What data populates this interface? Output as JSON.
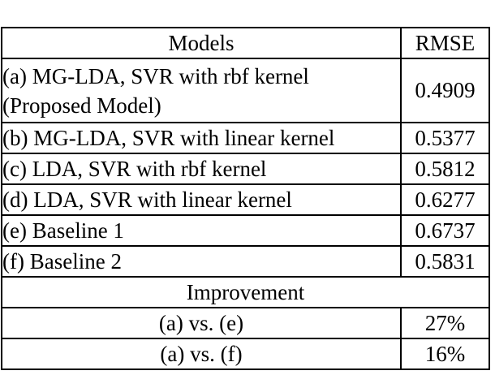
{
  "colors": {
    "background": "#ffffff",
    "border": "#000000",
    "text": "#000000"
  },
  "table": {
    "header": {
      "models": "Models",
      "rmse": "RMSE"
    },
    "rows": [
      {
        "model_line1": "(a) MG-LDA, SVR with rbf kernel",
        "model_line2": "(Proposed Model)",
        "rmse": "0.4909"
      },
      {
        "model": "(b) MG-LDA, SVR with linear kernel",
        "rmse": "0.5377"
      },
      {
        "model": "(c) LDA, SVR with rbf kernel",
        "rmse": "0.5812"
      },
      {
        "model": "(d) LDA, SVR with linear kernel",
        "rmse": "0.6277"
      },
      {
        "model": "(e) Baseline 1",
        "rmse": "0.6737"
      },
      {
        "model": "(f) Baseline 2",
        "rmse": "0.5831"
      }
    ],
    "section_header": "Improvement",
    "improvements": [
      {
        "comparison": "(a) vs. (e)",
        "value": "27%"
      },
      {
        "comparison": "(a) vs. (f)",
        "value": "16%"
      }
    ]
  },
  "chart_data": {
    "type": "table",
    "columns": [
      "Models",
      "RMSE"
    ],
    "rows": [
      [
        "(a) MG-LDA, SVR with rbf kernel (Proposed Model)",
        0.4909
      ],
      [
        "(b) MG-LDA, SVR with linear kernel",
        0.5377
      ],
      [
        "(c) LDA, SVR with rbf kernel",
        0.5812
      ],
      [
        "(d) LDA, SVR with linear kernel",
        0.6277
      ],
      [
        "(e) Baseline 1",
        0.6737
      ],
      [
        "(f) Baseline 2",
        0.5831
      ]
    ],
    "improvement_section": {
      "label": "Improvement",
      "rows": [
        [
          "(a) vs. (e)",
          "27%"
        ],
        [
          "(a) vs. (f)",
          "16%"
        ]
      ]
    }
  }
}
